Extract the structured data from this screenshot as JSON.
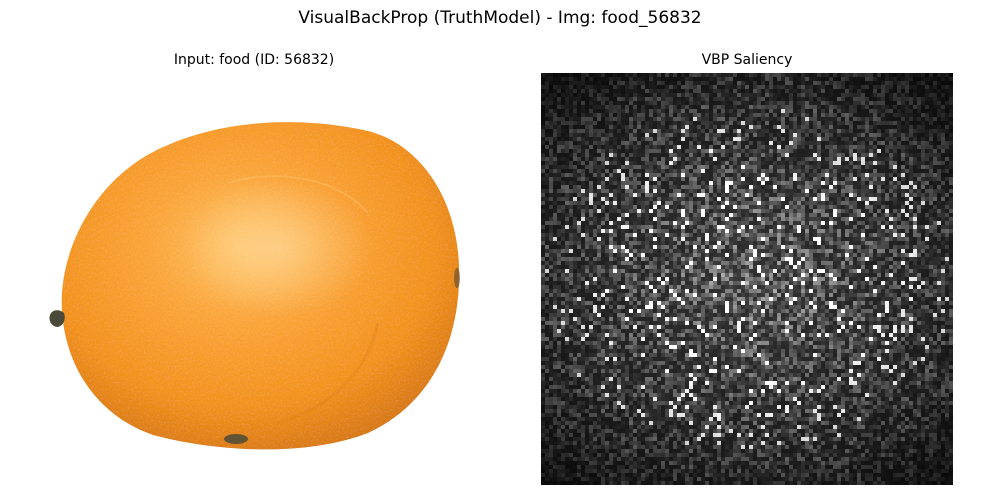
{
  "figure": {
    "title": "VisualBackProp (TruthModel) - Img: food_56832"
  },
  "input_panel": {
    "title": "Input: food (ID: 56832)",
    "subject": "orange",
    "colors": {
      "peel_light": "#FFB347",
      "peel_mid": "#F79A1E",
      "peel_dark": "#E07A0E",
      "stem": "#4A4A3A",
      "background": "#FFFFFF"
    }
  },
  "saliency_panel": {
    "title": "VBP Saliency",
    "colormap": "gray",
    "colors": {
      "background": "#050505",
      "highlight": "#FFFFFF"
    }
  }
}
